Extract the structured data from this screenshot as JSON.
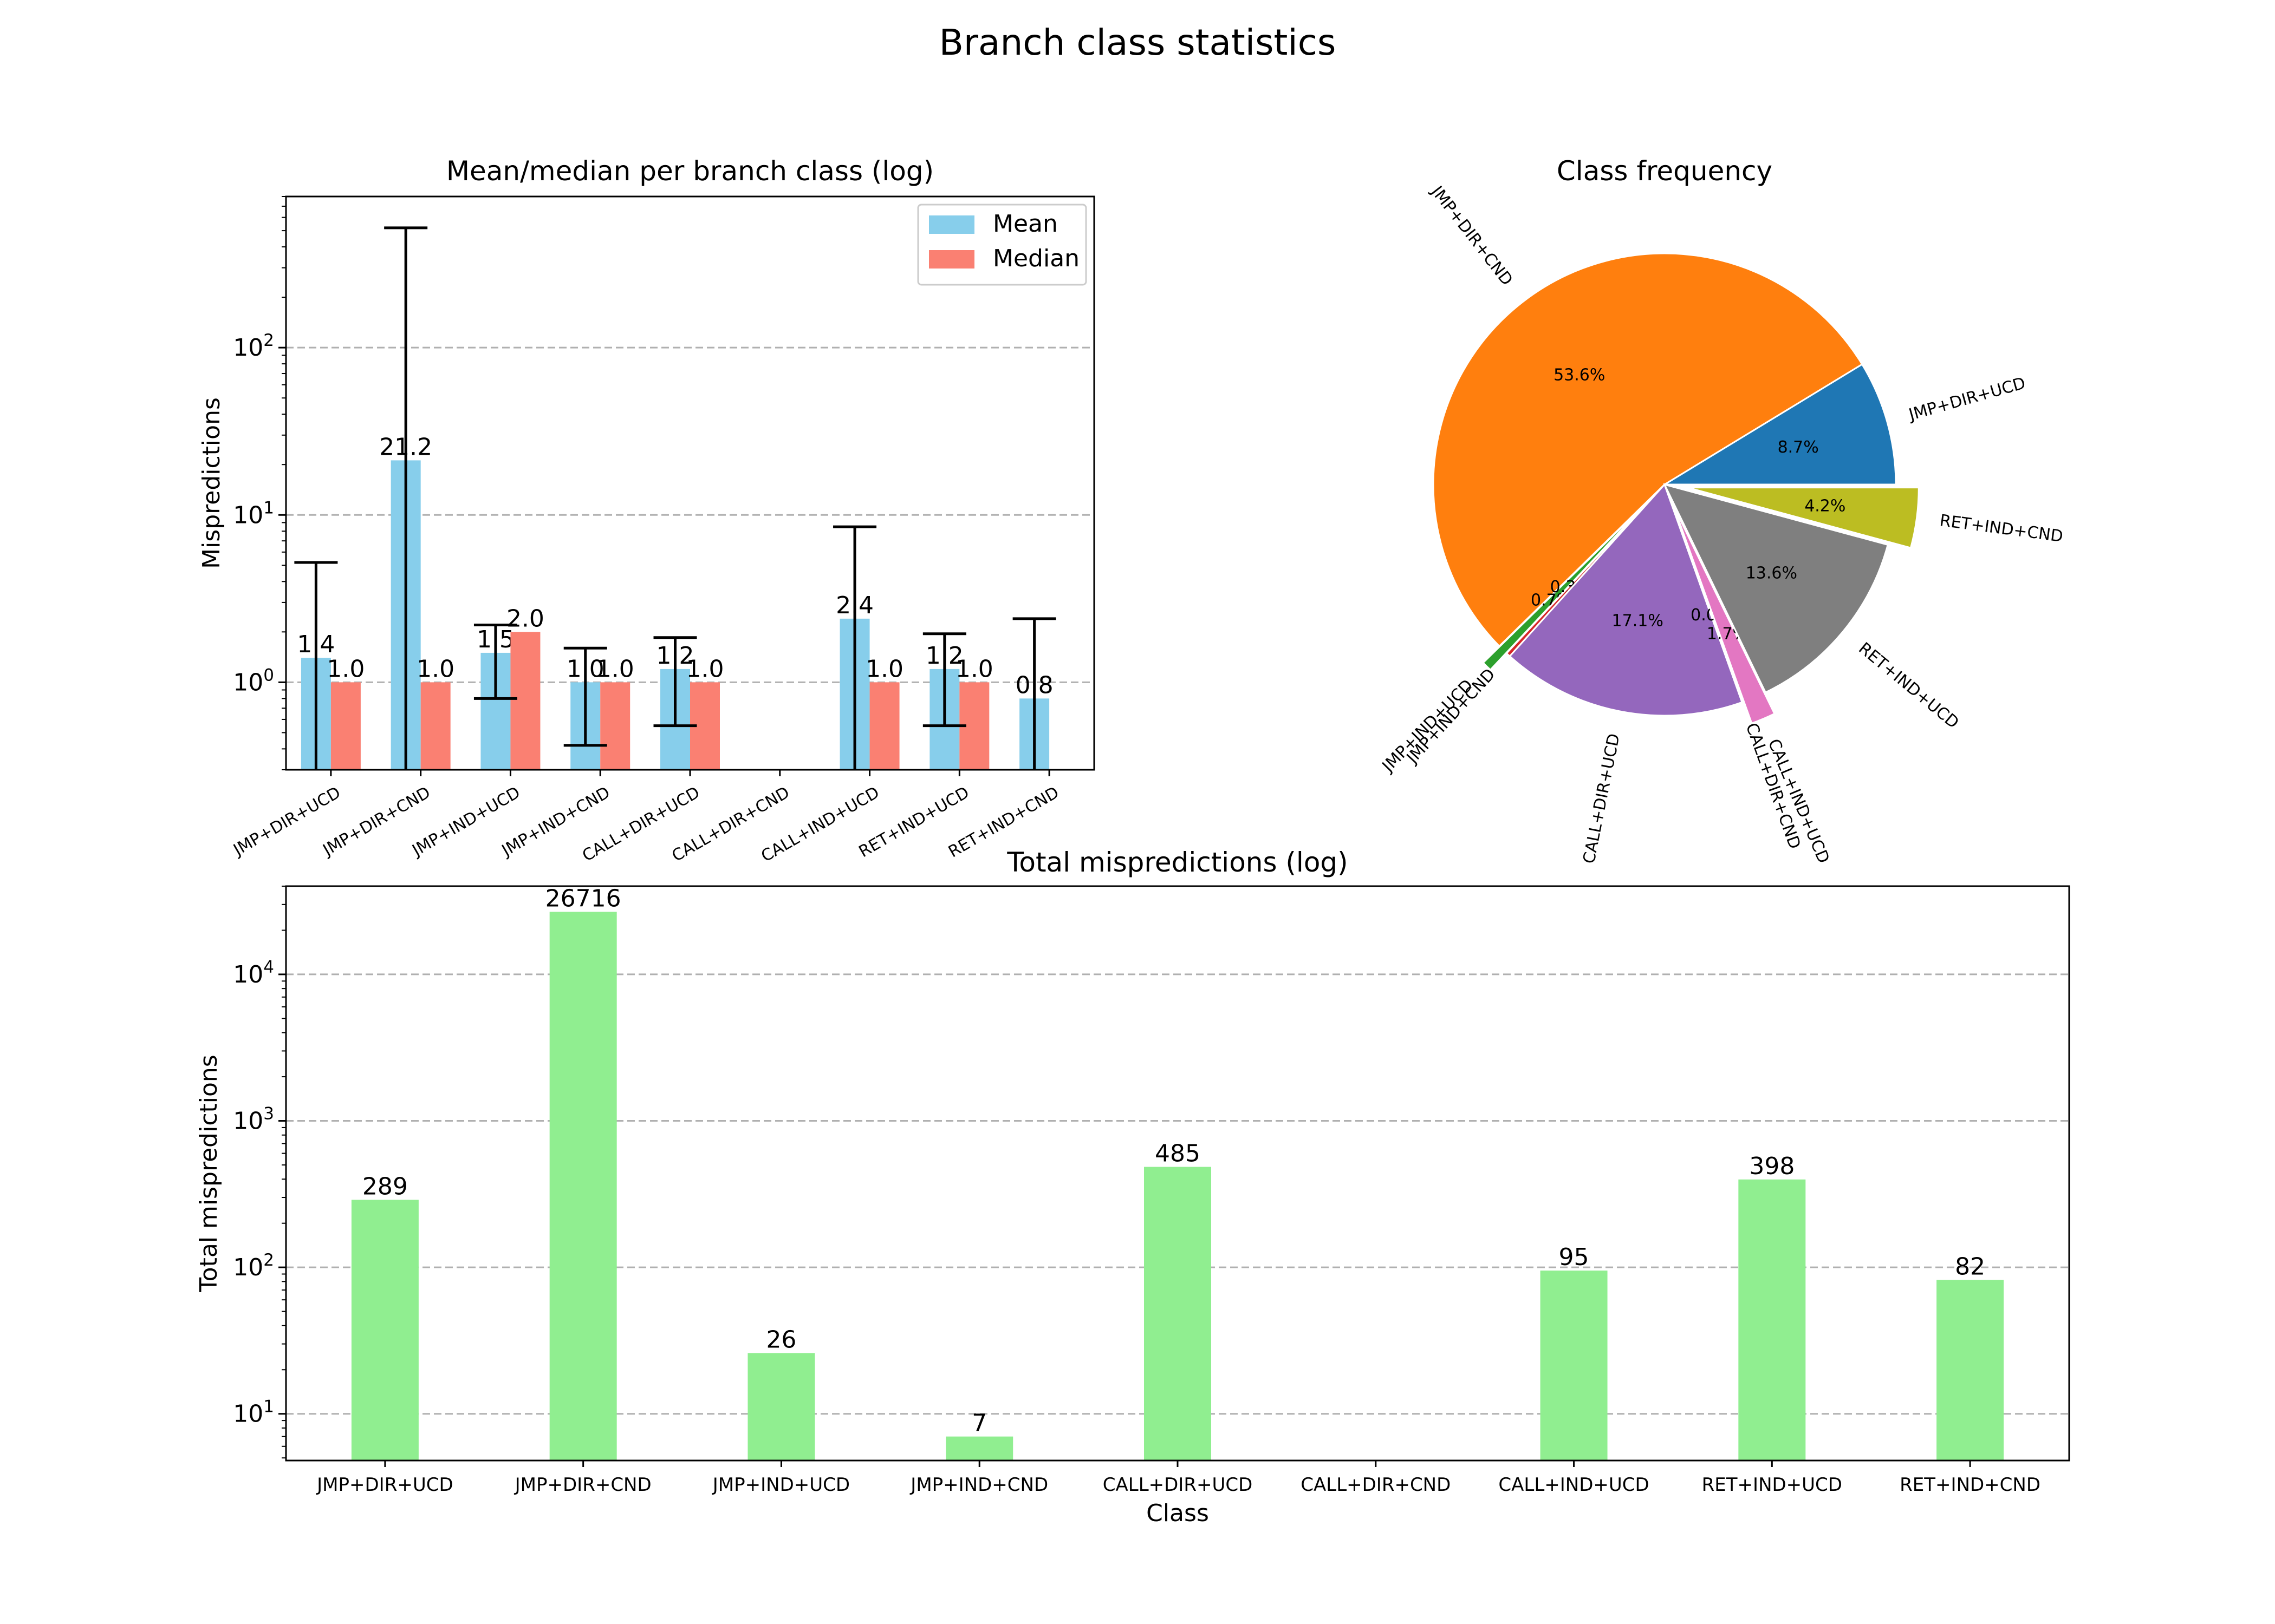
{
  "title": "Branch class statistics",
  "chart_data": [
    {
      "type": "bar",
      "title": "Mean/median per branch class (log)",
      "ylabel": "Mispredictions",
      "xlabel": "",
      "yscale": "log",
      "ylim": [
        0.3,
        800
      ],
      "grid": "y-dashed",
      "legend_position": "top-right",
      "categories": [
        "JMP+DIR+UCD",
        "JMP+DIR+CND",
        "JMP+IND+UCD",
        "JMP+IND+CND",
        "CALL+DIR+UCD",
        "CALL+DIR+CND",
        "CALL+IND+UCD",
        "RET+IND+UCD",
        "RET+IND+CND"
      ],
      "series": [
        {
          "name": "Mean",
          "color": "#87ceeb",
          "values": [
            1.4,
            21.2,
            1.5,
            1.0,
            1.2,
            null,
            2.4,
            1.2,
            0.8
          ],
          "labels": [
            "1.4",
            "21.2",
            "1.5",
            "1.0",
            "1.2",
            "",
            "2.4",
            "1.2",
            "0.8"
          ],
          "error_low": [
            0.25,
            0.25,
            0.8,
            0.42,
            0.55,
            null,
            0.25,
            0.55,
            0.25
          ],
          "error_high": [
            5.2,
            520,
            2.2,
            1.6,
            1.85,
            null,
            8.5,
            1.95,
            2.4
          ]
        },
        {
          "name": "Median",
          "color": "#fa8072",
          "values": [
            1.0,
            1.0,
            2.0,
            1.0,
            1.0,
            null,
            1.0,
            1.0,
            null
          ],
          "labels": [
            "1.0",
            "1.0",
            "2.0",
            "1.0",
            "1.0",
            "",
            "1.0",
            "1.0",
            ""
          ]
        }
      ],
      "yticks": [
        {
          "base": "10",
          "exp": "0"
        },
        {
          "base": "10",
          "exp": "1"
        },
        {
          "base": "10",
          "exp": "2"
        }
      ]
    },
    {
      "type": "pie",
      "title": "Class frequency",
      "slices": [
        {
          "label": "JMP+DIR+UCD",
          "value": 8.7,
          "pct": "8.7%",
          "color": "#1f77b4",
          "explode": 0
        },
        {
          "label": "JMP+DIR+CND",
          "value": 53.6,
          "pct": "53.6%",
          "color": "#ff7f0e",
          "explode": 0
        },
        {
          "label": "JMP+IND+UCD",
          "value": 0.7,
          "pct": "0.7%",
          "color": "#2ca02c",
          "explode": 1
        },
        {
          "label": "JMP+IND+CND",
          "value": 0.3,
          "pct": "0.3%",
          "color": "#d62728",
          "explode": 0
        },
        {
          "label": "CALL+DIR+UCD",
          "value": 17.1,
          "pct": "17.1%",
          "color": "#9467bd",
          "explode": 0
        },
        {
          "label": "CALL+DIR+CND",
          "value": 0.05,
          "pct": "0.0%",
          "color": "#8c564b",
          "explode": 0
        },
        {
          "label": "CALL+IND+UCD",
          "value": 1.7,
          "pct": "1.7%",
          "color": "#e377c2",
          "explode": 1
        },
        {
          "label": "RET+IND+UCD",
          "value": 13.6,
          "pct": "13.6%",
          "color": "#7f7f7f",
          "explode": 0
        },
        {
          "label": "RET+IND+CND",
          "value": 4.2,
          "pct": "4.2%",
          "color": "#bcbd22",
          "explode": 1
        }
      ]
    },
    {
      "type": "bar",
      "title": "Total mispredictions (log)",
      "xlabel": "Class",
      "ylabel": "Total mispredictions",
      "yscale": "log",
      "ylim": [
        4.8,
        40000
      ],
      "grid": "y-dashed",
      "categories": [
        "JMP+DIR+UCD",
        "JMP+DIR+CND",
        "JMP+IND+UCD",
        "JMP+IND+CND",
        "CALL+DIR+UCD",
        "CALL+DIR+CND",
        "CALL+IND+UCD",
        "RET+IND+UCD",
        "RET+IND+CND"
      ],
      "series": [
        {
          "name": "",
          "color": "#90ee90",
          "values": [
            289,
            26716,
            26,
            7,
            485,
            null,
            95,
            398,
            82
          ],
          "labels": [
            "289",
            "26716",
            "26",
            "7",
            "485",
            "",
            "95",
            "398",
            "82"
          ]
        }
      ],
      "yticks": [
        {
          "base": "10",
          "exp": "1"
        },
        {
          "base": "10",
          "exp": "2"
        },
        {
          "base": "10",
          "exp": "3"
        },
        {
          "base": "10",
          "exp": "4"
        }
      ]
    }
  ]
}
